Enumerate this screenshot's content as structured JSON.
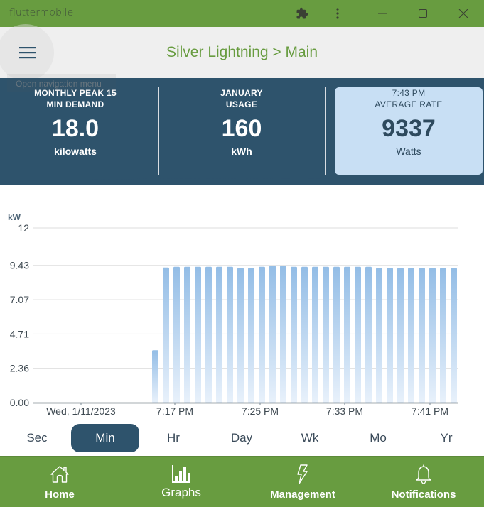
{
  "window": {
    "title": "fluttermobile",
    "controls": [
      "extensions",
      "menu",
      "minimize",
      "maximize",
      "close"
    ]
  },
  "appbar": {
    "title": "Silver Lightning > Main",
    "menu_tooltip": "Open navigation menu"
  },
  "stats": [
    {
      "label_line1": "MONTHLY PEAK 15",
      "label_line2": "MIN DEMAND",
      "value": "18.0",
      "unit": "kilowatts"
    },
    {
      "label_line1": "JANUARY",
      "label_line2": "USAGE",
      "value": "160",
      "unit": "kWh"
    },
    {
      "label_line1": "7:43 PM",
      "label_line2": "AVERAGE RATE",
      "value": "9337",
      "unit": "Watts"
    }
  ],
  "colors": {
    "brand_green": "#689c40",
    "navy": "#2e536c",
    "highlight": "#c8dff4",
    "bar_top": "#93bde6",
    "bar_bottom": "#e4effa"
  },
  "chart_data": {
    "type": "bar",
    "title": "",
    "ylabel": "kW",
    "xlabel": "",
    "ylim": [
      0,
      12
    ],
    "yticks": [
      "0.00",
      "2.36",
      "4.71",
      "7.07",
      "9.43",
      "12"
    ],
    "xticks": [
      "Wed, 1/11/2023",
      "7:17 PM",
      "7:25 PM",
      "7:33 PM",
      "7:41 PM"
    ],
    "grid": true,
    "categories": [
      "7:15",
      "7:16",
      "7:17",
      "7:18",
      "7:19",
      "7:20",
      "7:21",
      "7:22",
      "7:23",
      "7:24",
      "7:25",
      "7:26",
      "7:27",
      "7:28",
      "7:29",
      "7:30",
      "7:31",
      "7:32",
      "7:33",
      "7:34",
      "7:35",
      "7:36",
      "7:37",
      "7:38",
      "7:39",
      "7:40",
      "7:41",
      "7:42",
      "7:43"
    ],
    "values": [
      3.6,
      9.28,
      9.33,
      9.33,
      9.33,
      9.33,
      9.33,
      9.33,
      9.25,
      9.25,
      9.33,
      9.4,
      9.4,
      9.33,
      9.33,
      9.33,
      9.33,
      9.33,
      9.33,
      9.33,
      9.33,
      9.25,
      9.25,
      9.25,
      9.25,
      9.25,
      9.25,
      9.25,
      9.25
    ]
  },
  "range_tabs": [
    {
      "label": "Sec",
      "active": false
    },
    {
      "label": "Min",
      "active": true
    },
    {
      "label": "Hr",
      "active": false
    },
    {
      "label": "Day",
      "active": false
    },
    {
      "label": "Wk",
      "active": false
    },
    {
      "label": "Mo",
      "active": false
    },
    {
      "label": "Yr",
      "active": false
    }
  ],
  "bottom_nav": [
    {
      "label": "Home",
      "icon": "home-icon",
      "active": false
    },
    {
      "label": "Graphs",
      "icon": "bar-chart-icon",
      "active": true
    },
    {
      "label": "Management",
      "icon": "lightning-icon",
      "active": false
    },
    {
      "label": "Notifications",
      "icon": "bell-icon",
      "active": false
    }
  ]
}
